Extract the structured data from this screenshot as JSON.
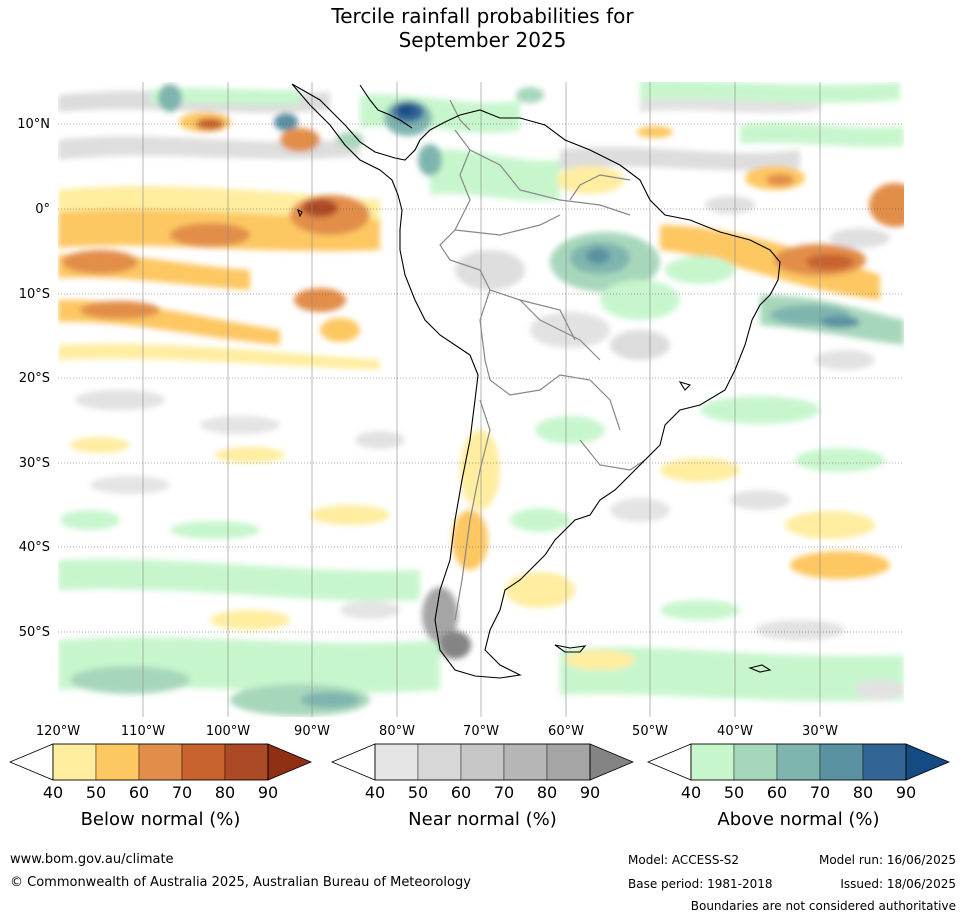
{
  "title": {
    "line1": "Tercile rainfall probabilities for",
    "line2": "September 2025"
  },
  "map": {
    "lat_labels": [
      "10°N",
      "0°",
      "10°S",
      "20°S",
      "30°S",
      "40°S",
      "50°S"
    ],
    "lon_labels": [
      "120°W",
      "110°W",
      "100°W",
      "90°W",
      "80°W",
      "70°W",
      "60°W",
      "50°W",
      "40°W",
      "30°W"
    ],
    "gridlines": true
  },
  "legend": {
    "below": {
      "title": "Below normal (%)",
      "ticks": [
        "40",
        "50",
        "60",
        "70",
        "80",
        "90"
      ],
      "colors": [
        "#ffffff",
        "#ffeda0",
        "#fdc762",
        "#e28e4a",
        "#c8622e",
        "#ad4a26",
        "#8f3015"
      ]
    },
    "near": {
      "title": "Near normal (%)",
      "ticks": [
        "40",
        "50",
        "60",
        "70",
        "80",
        "90"
      ],
      "colors": [
        "#ffffff",
        "#e5e5e5",
        "#d7d7d7",
        "#c7c7c7",
        "#b6b6b6",
        "#a5a5a5",
        "#848484"
      ]
    },
    "above": {
      "title": "Above normal (%)",
      "ticks": [
        "40",
        "50",
        "60",
        "70",
        "80",
        "90"
      ],
      "colors": [
        "#ffffff",
        "#c7f6cd",
        "#a7d7bb",
        "#7fb5af",
        "#5a92a2",
        "#326596",
        "#144b82"
      ]
    }
  },
  "footer": {
    "website": "www.bom.gov.au/climate",
    "copyright": "© Commonwealth of Australia 2025, Australian Bureau of Meteorology",
    "model": "Model: ACCESS-S2",
    "base_period": "Base period: 1981-2018",
    "model_run": "Model run: 16/06/2025",
    "issued": "Issued: 18/06/2025",
    "disclaimer": "Boundaries are not considered authoritative"
  }
}
